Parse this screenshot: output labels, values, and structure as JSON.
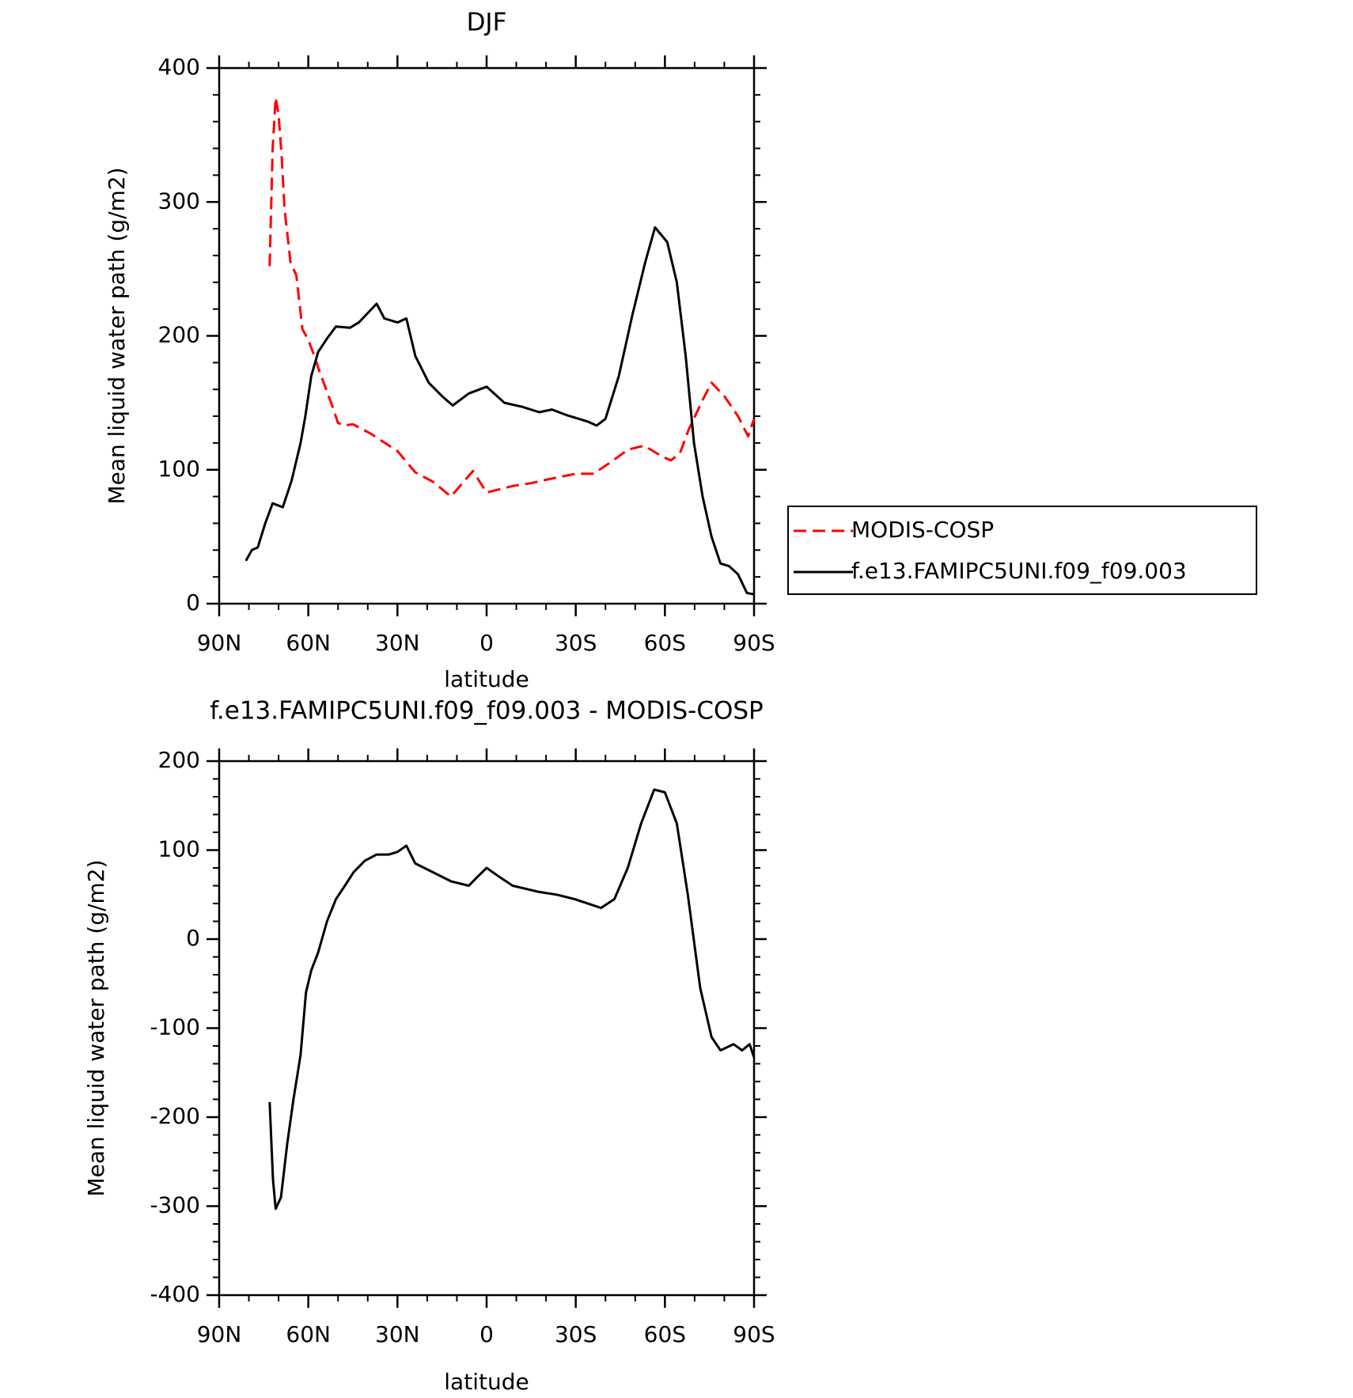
{
  "chart_data": [
    {
      "type": "line",
      "title": "DJF",
      "xlabel": "latitude",
      "ylabel": "Mean liquid water path (g/m2)",
      "xlim": [
        90,
        -90
      ],
      "xticks": [
        {
          "value": 90,
          "label": "90N"
        },
        {
          "value": 60,
          "label": "60N"
        },
        {
          "value": 30,
          "label": "30N"
        },
        0,
        {
          "value": -30,
          "label": "30S"
        },
        {
          "value": -60,
          "label": "60S"
        },
        {
          "value": -90,
          "label": "90S"
        }
      ],
      "ylim": [
        0,
        400
      ],
      "yticks": [
        0,
        100,
        200,
        300,
        400
      ],
      "legend": "right",
      "series": [
        {
          "name": "MODIS-COSP",
          "color": "#ff0000",
          "dashed": true,
          "x": [
            73,
            72,
            71,
            70,
            69,
            68,
            67,
            66,
            64,
            62,
            60,
            58,
            56,
            54,
            52,
            50,
            48,
            45,
            39,
            30,
            24,
            18,
            12,
            4.6,
            0,
            -9,
            -15,
            -21,
            -30,
            -36,
            -42,
            -47.5,
            -53,
            -59,
            -62,
            -65,
            -68,
            -72.7,
            -75.7,
            -80,
            -84.6,
            -88,
            -90
          ],
          "values": [
            252,
            340,
            378,
            365,
            335,
            295,
            275,
            255,
            245,
            205,
            197,
            185,
            172,
            160,
            148,
            135,
            133,
            134,
            127,
            114,
            98,
            91,
            80,
            99,
            83,
            88,
            90,
            93,
            97,
            97,
            106,
            115,
            118,
            110,
            107,
            112,
            130,
            152,
            165,
            155,
            140,
            125,
            138
          ]
        },
        {
          "name": "f.e13.FAMIPC5UNI.f09_f09.003",
          "color": "#000000",
          "dashed": false,
          "x": [
            81,
            79,
            77,
            74.5,
            72,
            68.6,
            65.6,
            62.6,
            61,
            59,
            56.7,
            53.7,
            50.7,
            46,
            43,
            37,
            34.4,
            30,
            27,
            24,
            19.5,
            15,
            11.4,
            6,
            0,
            -6,
            -12,
            -17.7,
            -22,
            -26.7,
            -34,
            -37,
            -40,
            -44.5,
            -49,
            -53.4,
            -56.7,
            -60.8,
            -64,
            -67,
            -69.8,
            -72.7,
            -75.7,
            -78.7,
            -81.6,
            -84.6,
            -87.6,
            -90
          ],
          "values": [
            32,
            40,
            42,
            60,
            75,
            72,
            92,
            120,
            140,
            170,
            188,
            198,
            207,
            206,
            210,
            224,
            213,
            210,
            213,
            185,
            165,
            155,
            148,
            157,
            162,
            150,
            147,
            143,
            145,
            141,
            136,
            133,
            138,
            170,
            215,
            255,
            281,
            270,
            240,
            185,
            120,
            80,
            50,
            30,
            28,
            22,
            8,
            7
          ]
        }
      ]
    },
    {
      "type": "line",
      "title": "f.e13.FAMIPC5UNI.f09_f09.003 - MODIS-COSP",
      "xlabel": "latitude",
      "ylabel": "Mean liquid water path (g/m2)",
      "xlim": [
        90,
        -90
      ],
      "xticks": [
        {
          "value": 90,
          "label": "90N"
        },
        {
          "value": 60,
          "label": "60N"
        },
        {
          "value": 30,
          "label": "30N"
        },
        0,
        {
          "value": -30,
          "label": "30S"
        },
        {
          "value": -60,
          "label": "60S"
        },
        {
          "value": -90,
          "label": "90S"
        }
      ],
      "ylim": [
        -400,
        200
      ],
      "yticks": [
        -400,
        -300,
        -200,
        -100,
        0,
        100,
        200
      ],
      "color": "#000000",
      "x": [
        73,
        71.9,
        71,
        69.2,
        67.1,
        65,
        62.6,
        60.8,
        59,
        56.7,
        53.7,
        50.7,
        47.7,
        44.8,
        41,
        37,
        32.9,
        30,
        27,
        24,
        18,
        12,
        6,
        3.1,
        0,
        -4.3,
        -8.8,
        -17.7,
        -23.6,
        -29.6,
        -38.5,
        -43,
        -47.5,
        -52,
        -56.4,
        -60,
        -64,
        -67.7,
        -71.9,
        -75.7,
        -78.7,
        -83.1,
        -86,
        -88.5,
        -90
      ],
      "values": [
        -183,
        -270,
        -303,
        -290,
        -230,
        -180,
        -130,
        -60,
        -35,
        -15,
        20,
        45,
        60,
        75,
        88,
        95,
        95,
        98,
        105,
        85,
        75,
        65,
        60,
        70,
        80,
        70,
        60,
        53,
        50,
        45,
        35,
        45,
        80,
        130,
        168,
        165,
        130,
        50,
        -55,
        -110,
        -125,
        -118,
        -125,
        -118,
        -133
      ]
    }
  ]
}
